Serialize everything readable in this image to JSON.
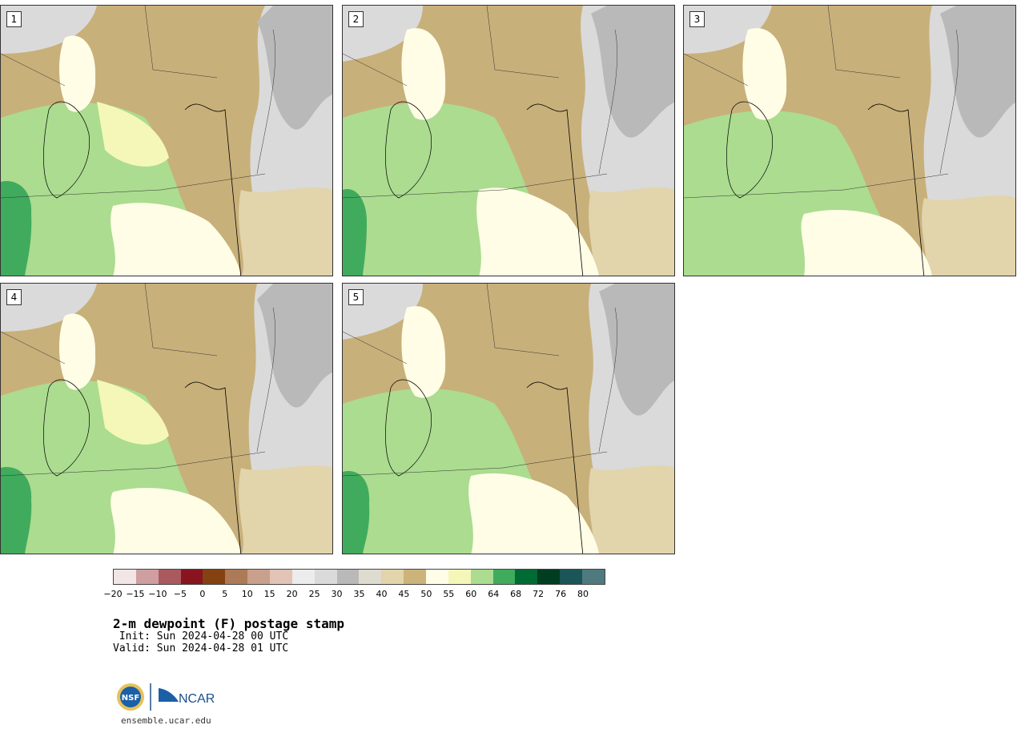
{
  "title": "2-m dewpoint (F) postage stamp",
  "init": " Init: Sun 2024-04-28 00 UTC",
  "valid": "Valid: Sun 2024-04-28 01 UTC",
  "url": "ensemble.ucar.edu",
  "logos": {
    "nsf": "NSF",
    "ncar": "NCAR"
  },
  "panels": [
    {
      "label": "1"
    },
    {
      "label": "2"
    },
    {
      "label": "3"
    },
    {
      "label": "4"
    },
    {
      "label": "5"
    }
  ],
  "colorbar": {
    "colors": [
      "#f1e5e5",
      "#cf9ea0",
      "#aa5a5e",
      "#881420",
      "#844213",
      "#ad7a57",
      "#c8a08b",
      "#e1c3b7",
      "#ececec",
      "#dadada",
      "#b9b9b9",
      "#dedccf",
      "#e2d4ab",
      "#cbb37a",
      "#fffde6",
      "#f4f7b8",
      "#abdc90",
      "#40ab5d",
      "#006b33",
      "#003d21",
      "#1a5558",
      "#4e7a7e"
    ],
    "ticks": [
      "−20",
      "−15",
      "−10",
      "−5",
      "0",
      "5",
      "10",
      "15",
      "20",
      "25",
      "30",
      "35",
      "40",
      "45",
      "50",
      "55",
      "60",
      "64",
      "68",
      "72",
      "76",
      "80"
    ]
  }
}
